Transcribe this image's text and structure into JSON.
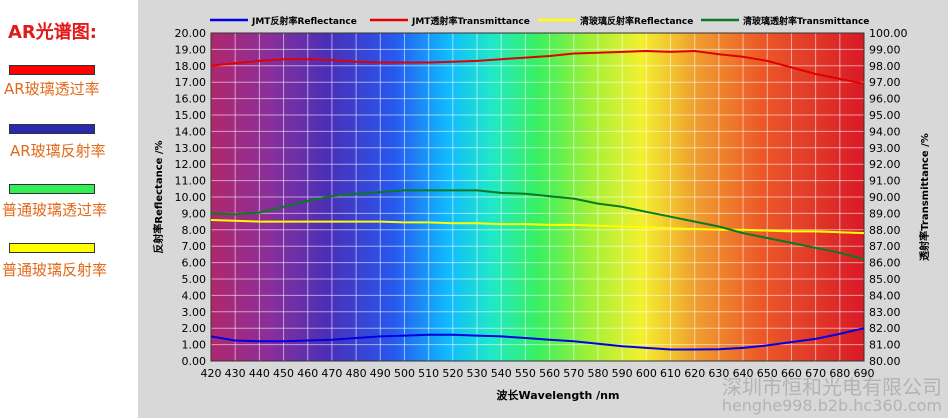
{
  "panel": {
    "title": "AR光谱图:",
    "items": [
      {
        "label": "AR玻璃透过率",
        "color": "#ff0000"
      },
      {
        "label": "AR玻璃反射率",
        "color": "#2a2ab0"
      },
      {
        "label": "普通玻璃透过率",
        "color": "#33ee55"
      },
      {
        "label": "普通玻璃反射率",
        "color": "#ffff00"
      }
    ]
  },
  "watermark": {
    "line1": "深圳市恒和光电有限公司",
    "line2": "henghe998.b2b.hc360.com"
  },
  "chart_data": {
    "type": "line",
    "xlabel": "波长Wavelength /nm",
    "ylabel_left": "反射率Reflectance /%",
    "ylabel_right": "透射率Transmittance /%",
    "x_ticks": [
      420,
      430,
      440,
      450,
      460,
      470,
      480,
      490,
      500,
      510,
      520,
      530,
      540,
      550,
      560,
      570,
      580,
      590,
      600,
      610,
      620,
      630,
      640,
      650,
      660,
      670,
      680,
      690
    ],
    "xlim": [
      420,
      690
    ],
    "ylim_left": [
      0,
      20
    ],
    "ylim_right": [
      80,
      100
    ],
    "left_ticks": [
      "0.00",
      "1.00",
      "2.00",
      "3.00",
      "4.00",
      "5.00",
      "6.00",
      "7.00",
      "8.00",
      "9.00",
      "10.00",
      "11.00",
      "12.00",
      "13.00",
      "14.00",
      "15.00",
      "16.00",
      "17.00",
      "18.00",
      "19.00",
      "20.00"
    ],
    "right_ticks": [
      "80.00",
      "81.00",
      "82.00",
      "83.00",
      "84.00",
      "85.00",
      "86.00",
      "87.00",
      "88.00",
      "89.00",
      "90.00",
      "91.00",
      "92.00",
      "93.00",
      "94.00",
      "95.00",
      "96.00",
      "97.00",
      "98.00",
      "99.00",
      "100.00"
    ],
    "grid": true,
    "legend_position": "top",
    "series": [
      {
        "name": "JMT反射率Reflectance",
        "axis": "left",
        "color": "#0000e0",
        "x": [
          420,
          430,
          440,
          450,
          460,
          470,
          480,
          490,
          500,
          510,
          520,
          530,
          540,
          550,
          560,
          570,
          580,
          590,
          600,
          610,
          620,
          630,
          640,
          650,
          660,
          670,
          680,
          690
        ],
        "values": [
          1.5,
          1.25,
          1.2,
          1.2,
          1.25,
          1.3,
          1.4,
          1.5,
          1.55,
          1.6,
          1.6,
          1.55,
          1.5,
          1.4,
          1.3,
          1.2,
          1.05,
          0.9,
          0.8,
          0.7,
          0.7,
          0.72,
          0.8,
          0.95,
          1.15,
          1.35,
          1.65,
          2.0
        ]
      },
      {
        "name": "JMT透射率Transmittance",
        "axis": "right",
        "color": "#e00000",
        "x": [
          420,
          430,
          440,
          450,
          460,
          470,
          480,
          490,
          500,
          510,
          520,
          530,
          540,
          550,
          560,
          570,
          580,
          590,
          600,
          610,
          620,
          630,
          640,
          650,
          660,
          670,
          680,
          690
        ],
        "values": [
          98.0,
          98.15,
          98.3,
          98.4,
          98.4,
          98.35,
          98.25,
          98.2,
          98.2,
          98.2,
          98.25,
          98.3,
          98.4,
          98.5,
          98.6,
          98.75,
          98.8,
          98.85,
          98.9,
          98.85,
          98.9,
          98.7,
          98.55,
          98.3,
          97.9,
          97.5,
          97.2,
          96.9
        ]
      },
      {
        "name": "清玻璃反射率Reflectance",
        "axis": "left",
        "color": "#ffff00",
        "x": [
          420,
          430,
          440,
          450,
          460,
          470,
          480,
          490,
          500,
          510,
          520,
          530,
          540,
          550,
          560,
          570,
          580,
          590,
          600,
          610,
          620,
          630,
          640,
          650,
          660,
          670,
          680,
          690
        ],
        "values": [
          8.6,
          8.55,
          8.5,
          8.5,
          8.5,
          8.5,
          8.5,
          8.5,
          8.45,
          8.45,
          8.4,
          8.4,
          8.35,
          8.35,
          8.3,
          8.3,
          8.25,
          8.2,
          8.15,
          8.1,
          8.05,
          8.0,
          8.0,
          7.95,
          7.9,
          7.9,
          7.85,
          7.8
        ]
      },
      {
        "name": "清玻璃透射率Transmittance",
        "axis": "right",
        "color": "#0a7a20",
        "x": [
          420,
          430,
          440,
          450,
          460,
          470,
          480,
          490,
          500,
          510,
          520,
          530,
          540,
          550,
          560,
          570,
          580,
          590,
          600,
          610,
          620,
          630,
          640,
          650,
          660,
          670,
          680,
          690
        ],
        "values": [
          89.0,
          88.95,
          89.05,
          89.4,
          89.75,
          90.05,
          90.2,
          90.3,
          90.4,
          90.4,
          90.4,
          90.4,
          90.25,
          90.2,
          90.05,
          89.9,
          89.6,
          89.4,
          89.1,
          88.8,
          88.5,
          88.2,
          87.8,
          87.5,
          87.2,
          86.9,
          86.6,
          86.2
        ]
      }
    ]
  }
}
